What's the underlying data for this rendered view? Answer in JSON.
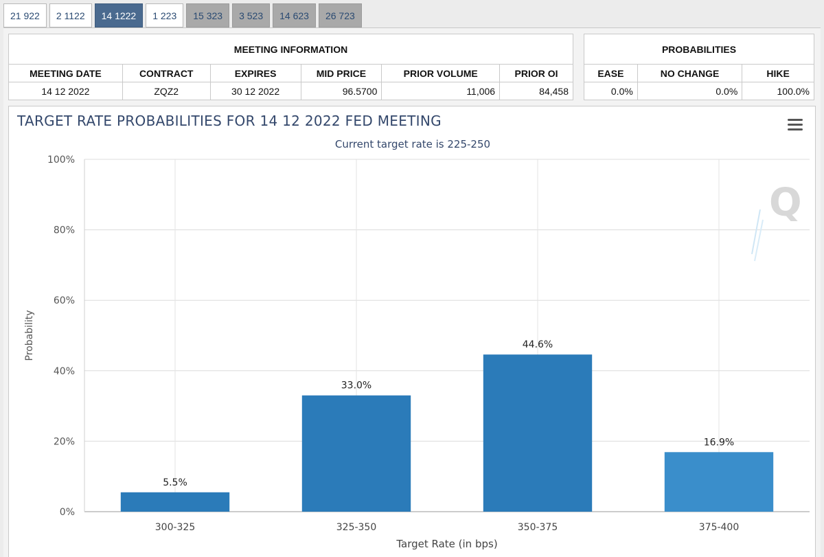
{
  "tabs": [
    {
      "label": "21 922",
      "state": "white"
    },
    {
      "label": "2 1122",
      "state": "white"
    },
    {
      "label": "14 1222",
      "state": "active"
    },
    {
      "label": "1 223",
      "state": "white"
    },
    {
      "label": "15 323",
      "state": "gray"
    },
    {
      "label": "3 523",
      "state": "gray"
    },
    {
      "label": "14 623",
      "state": "gray"
    },
    {
      "label": "26 723",
      "state": "gray"
    }
  ],
  "meeting_info": {
    "title": "MEETING INFORMATION",
    "columns": [
      "MEETING DATE",
      "CONTRACT",
      "EXPIRES",
      "MID PRICE",
      "PRIOR VOLUME",
      "PRIOR OI"
    ],
    "row": [
      "14 12 2022",
      "ZQZ2",
      "30 12 2022",
      "96.5700",
      "11,006",
      "84,458"
    ]
  },
  "probabilities": {
    "title": "PROBABILITIES",
    "columns": [
      "EASE",
      "NO CHANGE",
      "HIKE"
    ],
    "row": [
      "0.0%",
      "0.0%",
      "100.0%"
    ]
  },
  "chart": {
    "title": "TARGET RATE PROBABILITIES FOR 14 12 2022 FED MEETING",
    "subtitle": "Current target rate is 225-250",
    "menu_icon": "hamburger-menu-icon",
    "watermark_icon": "q-logo-icon"
  },
  "chart_data": {
    "type": "bar",
    "categories": [
      "300-325",
      "325-350",
      "350-375",
      "375-400"
    ],
    "values": [
      5.5,
      33.0,
      44.6,
      16.9
    ],
    "value_labels": [
      "5.5%",
      "33.0%",
      "44.6%",
      "16.9%"
    ],
    "xlabel": "Target Rate (in bps)",
    "ylabel": "Probability",
    "ylim": [
      0,
      100
    ],
    "yticks": [
      0,
      20,
      40,
      60,
      80,
      100
    ],
    "ytick_labels": [
      "0%",
      "20%",
      "40%",
      "60%",
      "80%",
      "100%"
    ],
    "grid": true,
    "bar_colors": [
      "#2b7bb9",
      "#2b7bb9",
      "#2b7bb9",
      "#3a8ecb"
    ]
  }
}
